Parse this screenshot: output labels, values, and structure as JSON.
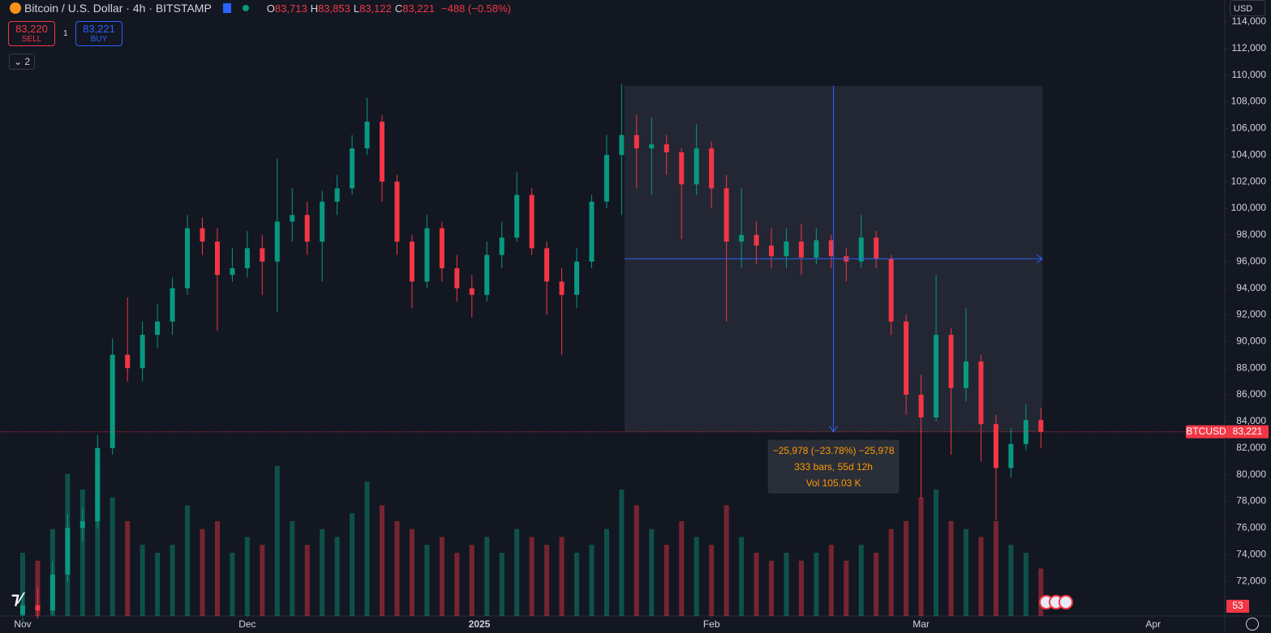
{
  "header": {
    "title": "Bitcoin / U.S. Dollar · 4h · BITSTAMP",
    "ohlc": [
      {
        "label": "O",
        "value": "83,713"
      },
      {
        "label": "H",
        "value": "83,853"
      },
      {
        "label": "L",
        "value": "83,122"
      },
      {
        "label": "C",
        "value": "83,221"
      }
    ],
    "change": "−488 (−0.58%)",
    "sell_price": "83,220",
    "sell_label": "SELL",
    "spread": "1",
    "buy_price": "83,221",
    "buy_label": "BUY",
    "indicators_count": "2",
    "currency": "USD"
  },
  "chart_data": {
    "type": "candlestick",
    "x": [
      0,
      2,
      4,
      6,
      8,
      10,
      12,
      14,
      16,
      18,
      20,
      22,
      24,
      26,
      28,
      30,
      32,
      34,
      36,
      38,
      40,
      42,
      44,
      46,
      48,
      50,
      52,
      54,
      56,
      58,
      60,
      62,
      64,
      66,
      68,
      70,
      72,
      74,
      76,
      78,
      80,
      82,
      84,
      86,
      88,
      90,
      92,
      94,
      96,
      98,
      100,
      102,
      104,
      106,
      108,
      110,
      112,
      114,
      116,
      118,
      120,
      122,
      124,
      126,
      128,
      130,
      132,
      134,
      136
    ],
    "open": [
      69500,
      70200,
      69800,
      72500,
      76000,
      76500,
      82000,
      89000,
      88000,
      90500,
      91500,
      94000,
      98500,
      97500,
      95000,
      95500,
      97000,
      96000,
      99000,
      99500,
      97500,
      100500,
      101500,
      104500,
      106500,
      102000,
      97500,
      94500,
      98500,
      95500,
      94000,
      93500,
      96500,
      97800,
      101000,
      97000,
      94500,
      93500,
      96000,
      100500,
      104000,
      105500,
      104500,
      104800,
      104200,
      101800,
      104500,
      101500,
      97500,
      98000,
      97200,
      96400,
      97500,
      96300,
      97600,
      96400,
      96000,
      97800,
      96200,
      91500,
      86000,
      84300,
      90500,
      86500,
      88500,
      83800,
      80500,
      82300,
      84100
    ],
    "high": [
      71000,
      71500,
      73500,
      77000,
      77500,
      83000,
      90200,
      93300,
      91500,
      92800,
      94800,
      99500,
      99300,
      98500,
      97000,
      98300,
      98000,
      103700,
      101500,
      100500,
      101300,
      102500,
      105500,
      108300,
      107000,
      102500,
      98000,
      99500,
      99000,
      96500,
      95000,
      97500,
      99000,
      102700,
      101500,
      97500,
      95500,
      97000,
      101000,
      105500,
      109300,
      107000,
      106800,
      105500,
      104500,
      106300,
      105000,
      102500,
      101500,
      99000,
      98500,
      98500,
      98800,
      98500,
      98000,
      97000,
      99500,
      98300,
      96500,
      92000,
      87500,
      95000,
      91000,
      92500,
      89000,
      84500,
      83500,
      85300,
      85000
    ],
    "low": [
      69000,
      69200,
      69500,
      72000,
      75000,
      76000,
      81500,
      87000,
      87000,
      89500,
      90500,
      93500,
      96500,
      90800,
      94500,
      94800,
      93500,
      92200,
      97500,
      96500,
      94500,
      99500,
      101000,
      104000,
      100500,
      96500,
      92500,
      94000,
      94500,
      93000,
      91800,
      93000,
      95500,
      97500,
      96500,
      92000,
      89000,
      92500,
      95500,
      100000,
      99500,
      101500,
      101000,
      102500,
      97700,
      101000,
      100000,
      91500,
      95500,
      95800,
      95500,
      95500,
      95000,
      95800,
      95500,
      94500,
      95500,
      95500,
      90500,
      84500,
      78200,
      84000,
      81500,
      85500,
      81000,
      76600,
      79800,
      81800,
      82000
    ],
    "close": [
      70200,
      69800,
      72500,
      76000,
      76500,
      82000,
      89000,
      88000,
      90500,
      91500,
      94000,
      98500,
      97500,
      95000,
      95500,
      97000,
      96000,
      99000,
      99500,
      97500,
      100500,
      101500,
      104500,
      106500,
      102000,
      97500,
      94500,
      98500,
      95500,
      94000,
      93500,
      96500,
      97800,
      101000,
      97000,
      94500,
      93500,
      96000,
      100500,
      104000,
      105500,
      104500,
      104800,
      104200,
      101800,
      104500,
      101500,
      97500,
      98000,
      97200,
      96400,
      97500,
      96300,
      97600,
      96400,
      96000,
      97800,
      96200,
      91500,
      86000,
      84300,
      90500,
      86500,
      88500,
      83800,
      80500,
      82300,
      84100,
      83221
    ],
    "volume": [
      40,
      35,
      55,
      90,
      80,
      95,
      75,
      60,
      45,
      40,
      45,
      70,
      55,
      60,
      40,
      50,
      45,
      95,
      60,
      45,
      55,
      50,
      65,
      85,
      70,
      60,
      55,
      45,
      50,
      40,
      45,
      50,
      40,
      55,
      50,
      45,
      50,
      40,
      45,
      55,
      80,
      70,
      55,
      45,
      60,
      50,
      45,
      70,
      50,
      40,
      35,
      40,
      35,
      40,
      45,
      35,
      45,
      40,
      55,
      60,
      75,
      80,
      60,
      55,
      50,
      60,
      45,
      40,
      30
    ],
    "volume_lim": [
      0,
      100
    ],
    "up_color": "#089981",
    "down_color": "#f23645",
    "xlim": [
      -3.03,
      160.56
    ],
    "xticks": [
      {
        "value": 0,
        "label": "Nov"
      },
      {
        "value": 30,
        "label": "Dec"
      },
      {
        "value": 61,
        "label": "2025"
      },
      {
        "value": 92,
        "label": "Feb"
      },
      {
        "value": 120,
        "label": "Mar"
      },
      {
        "value": 151,
        "label": "Apr"
      }
    ],
    "ylim": [
      69390,
      115640
    ],
    "yticks": [
      {
        "value": 72000,
        "label": "72,000"
      },
      {
        "value": 74000,
        "label": "74,000"
      },
      {
        "value": 76000,
        "label": "76,000"
      },
      {
        "value": 78000,
        "label": "78,000"
      },
      {
        "value": 80000,
        "label": "80,000"
      },
      {
        "value": 82000,
        "label": "82,000"
      },
      {
        "value": 84000,
        "label": "84,000"
      },
      {
        "value": 86000,
        "label": "86,000"
      },
      {
        "value": 88000,
        "label": "88,000"
      },
      {
        "value": 90000,
        "label": "90,000"
      },
      {
        "value": 92000,
        "label": "92,000"
      },
      {
        "value": 94000,
        "label": "94,000"
      },
      {
        "value": 96000,
        "label": "96,000"
      },
      {
        "value": 98000,
        "label": "98,000"
      },
      {
        "value": 100000,
        "label": "100,000"
      },
      {
        "value": 102000,
        "label": "102,000"
      },
      {
        "value": 104000,
        "label": "104,000"
      },
      {
        "value": 106000,
        "label": "106,000"
      },
      {
        "value": 108000,
        "label": "108,000"
      },
      {
        "value": 110000,
        "label": "110,000"
      },
      {
        "value": 112000,
        "label": "112,000"
      },
      {
        "value": 114000,
        "label": "114,000"
      }
    ],
    "last_price": {
      "value": 83221,
      "label": "83,221",
      "symbol": "BTCUSD"
    },
    "volume_badge": "53",
    "measure": {
      "x_start": 80.4,
      "x_end": 136.2,
      "from": 109199,
      "to": 83221,
      "lines": [
        "−25,978 (−23.78%) −25,978",
        "333 bars, 55d 12h",
        "Vol 105.03 K"
      ]
    }
  }
}
